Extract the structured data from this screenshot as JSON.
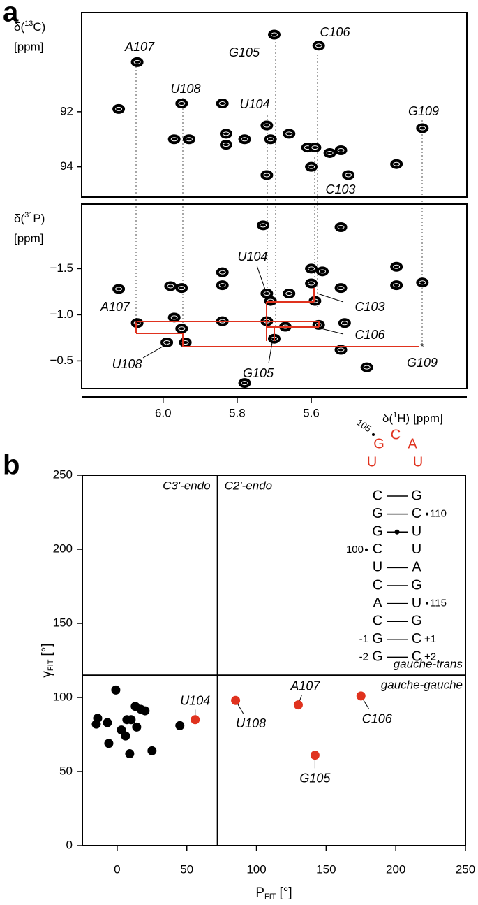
{
  "panel_labels": [
    "a",
    "b"
  ],
  "chart_data": [
    {
      "type": "contour",
      "y_label": {
        "prefix": "δ(",
        "superscript": "13",
        "suffix": "C)",
        "unit": "[ppm]"
      },
      "x": [
        6.12,
        6.07,
        5.95,
        5.97,
        5.93,
        5.84,
        5.83,
        5.83,
        5.78,
        5.72,
        5.71,
        5.72,
        5.7,
        5.66,
        5.61,
        5.58,
        5.59,
        5.6,
        5.55,
        5.52,
        5.5,
        5.37,
        5.3
      ],
      "values": [
        91.9,
        90.2,
        91.7,
        93.0,
        93.0,
        91.7,
        92.8,
        93.2,
        93.0,
        92.5,
        93.0,
        94.3,
        89.2,
        92.8,
        93.3,
        89.6,
        93.3,
        94.0,
        93.5,
        93.4,
        94.3,
        93.9,
        92.6
      ],
      "color": "#000000",
      "xlim": [
        6.22,
        5.18
      ],
      "ylim": [
        88.4,
        95.1
      ],
      "yticks": [
        92,
        94
      ],
      "annotations": [
        "A107",
        "G105",
        "C106",
        "U108",
        "U104",
        "G109",
        "C103"
      ]
    },
    {
      "type": "contour",
      "y_label": {
        "prefix": "δ(",
        "superscript": "31",
        "suffix": "P)",
        "unit": "[ppm]"
      },
      "x_label": {
        "prefix": "δ(",
        "superscript": "1",
        "suffix": "H)",
        "unit": "[ppm]"
      },
      "x": [
        6.12,
        6.07,
        5.98,
        5.95,
        5.97,
        5.95,
        5.99,
        5.94,
        5.84,
        5.84,
        5.84,
        5.78,
        5.73,
        5.72,
        5.71,
        5.72,
        5.7,
        5.67,
        5.66,
        5.6,
        5.6,
        5.59,
        5.58,
        5.57,
        5.52,
        5.52,
        5.51,
        5.52,
        5.45,
        5.37,
        5.37,
        5.3
      ],
      "values": [
        -1.28,
        -0.91,
        -1.31,
        -1.29,
        -0.97,
        -0.85,
        -0.7,
        -0.7,
        -1.46,
        -1.32,
        -0.93,
        -0.26,
        -1.97,
        -1.23,
        -1.15,
        -0.93,
        -0.74,
        -0.87,
        -1.23,
        -1.5,
        -1.34,
        -1.15,
        -0.89,
        -1.47,
        -1.95,
        -1.29,
        -0.91,
        -0.62,
        -0.43,
        -1.52,
        -1.32,
        -1.35
      ],
      "color": "#000000",
      "xlim": [
        6.22,
        5.18
      ],
      "ylim": [
        -2.2,
        -0.2
      ],
      "xticks": [
        {
          "value": 6,
          "label": "6.0"
        },
        {
          "value": 5.8,
          "label": "5.8"
        },
        {
          "value": 5.6,
          "label": "5.6"
        }
      ],
      "yticks": [
        {
          "value": -1.5,
          "label": "−1.5"
        },
        {
          "value": -1,
          "label": "−1.0"
        },
        {
          "value": -0.5,
          "label": "−0.5"
        }
      ],
      "annotations": [
        "U104",
        "A107",
        "C103",
        "C106",
        "U108",
        "G105",
        "G109"
      ]
    },
    {
      "type": "scatter",
      "x_label": {
        "symbol": "P",
        "subscript": "FIT",
        "unit": "[°]"
      },
      "y_label": {
        "symbol": "γ",
        "subscript": "FIT",
        "unit": "[°]"
      },
      "xlim": [
        -25,
        250
      ],
      "ylim": [
        0,
        250
      ],
      "xticks": [
        0,
        50,
        100,
        150,
        200,
        250
      ],
      "yticks": [
        0,
        50,
        100,
        150,
        200,
        250
      ],
      "dividers": {
        "x": 72,
        "y": 115
      },
      "region_labels": [
        "C3'-endo",
        "C2'-endo",
        "gauche-trans",
        "gauche-gauche"
      ],
      "series": [
        {
          "color": "#000000",
          "x": [
            -1,
            -14,
            -15,
            -7,
            -6,
            3,
            6,
            7,
            10,
            9,
            13,
            14,
            17,
            20,
            25,
            45
          ],
          "values": [
            105,
            86,
            82,
            83,
            69,
            78,
            74,
            85,
            85,
            62,
            94,
            80,
            92,
            91,
            64,
            81
          ]
        },
        {
          "color": "#e0321e",
          "x": [
            56,
            85,
            130,
            142,
            175
          ],
          "values": [
            85,
            98,
            95,
            61,
            101
          ],
          "labels": [
            "U104",
            "U108",
            "A107",
            "G105",
            "C106"
          ]
        }
      ]
    }
  ],
  "rna": {
    "loop_color": "#e0321e",
    "loop": [
      "G",
      "C",
      "A"
    ],
    "loop_stem": [
      "U",
      "U"
    ],
    "loop_number": "105",
    "pairs": [
      {
        "left": "C",
        "right": "G"
      },
      {
        "left": "G",
        "right": "C",
        "right_number": "110"
      },
      {
        "left": "G",
        "right": "U"
      },
      {
        "left": "C",
        "right": "U",
        "left_number": "100"
      },
      {
        "left": "U",
        "right": "A"
      },
      {
        "left": "C",
        "right": "G"
      },
      {
        "left": "A",
        "right": "U",
        "right_number": "115"
      },
      {
        "left": "C",
        "right": "G"
      },
      {
        "left": "G",
        "right": "C",
        "left_number": "-1",
        "right_number": "+1"
      },
      {
        "left": "G",
        "right": "C",
        "left_number": "-2",
        "right_number": "+2"
      }
    ]
  }
}
